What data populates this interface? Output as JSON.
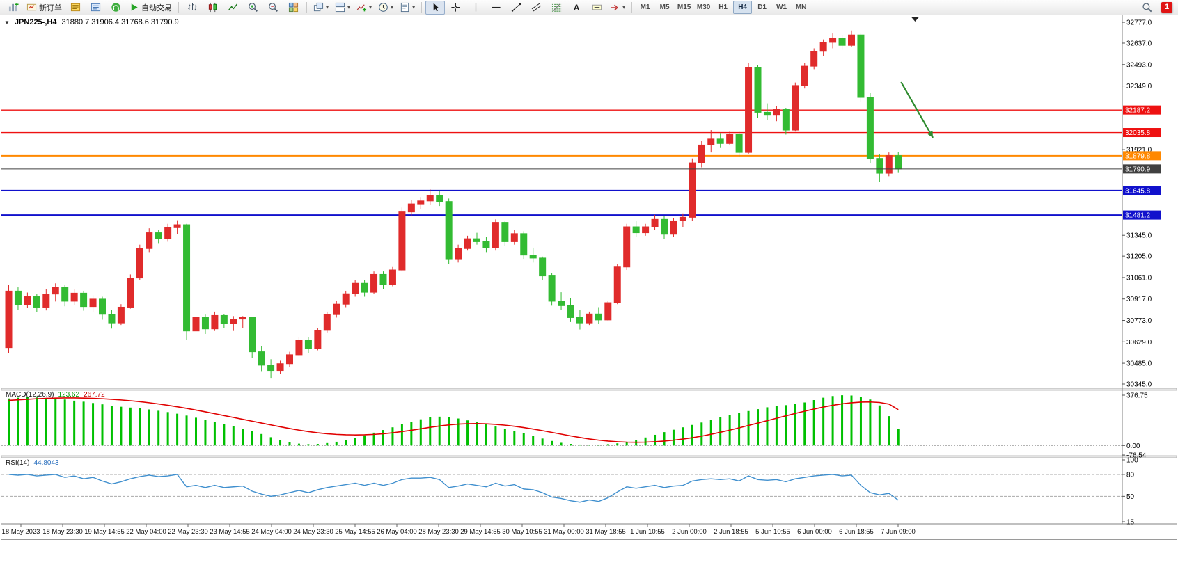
{
  "toolbar": {
    "active_timeframe": "H4",
    "items": [
      {
        "name": "new-chart-icon",
        "icon": "chart-plus"
      },
      {
        "name": "new-order-button",
        "icon": "order-ticket",
        "label": "新订单"
      },
      {
        "name": "market-watch-icon",
        "icon": "market-watch"
      },
      {
        "name": "data-window-icon",
        "icon": "data-window"
      },
      {
        "name": "toolbox-icon",
        "icon": "headset"
      },
      {
        "name": "autotrading-button",
        "icon": "play",
        "label": "自动交易"
      },
      {
        "sep": true
      },
      {
        "name": "bar-chart-icon",
        "icon": "bars"
      },
      {
        "name": "candlestick-chart-icon",
        "icon": "candles"
      },
      {
        "name": "line-chart-icon",
        "icon": "line-chart"
      },
      {
        "name": "zoom-in-icon",
        "icon": "zoom-in"
      },
      {
        "name": "zoom-out-icon",
        "icon": "zoom-out"
      },
      {
        "name": "tile-windows-icon",
        "icon": "tiles"
      },
      {
        "sep": true
      },
      {
        "name": "cascade-windows-icon",
        "icon": "cascade",
        "dropdown": true
      },
      {
        "name": "arrange-windows-icon",
        "icon": "arrange",
        "dropdown": true
      },
      {
        "name": "indicators-icon",
        "icon": "indicator-plus",
        "dropdown": true
      },
      {
        "name": "periods-icon",
        "icon": "clock",
        "dropdown": true
      },
      {
        "name": "templates-icon",
        "icon": "template",
        "dropdown": true
      },
      {
        "sep": true
      },
      {
        "name": "cursor-tool-button",
        "icon": "cursor",
        "active": true
      },
      {
        "name": "crosshair-tool-button",
        "icon": "crosshair"
      },
      {
        "name": "vertical-line-tool-button",
        "icon": "vline"
      },
      {
        "name": "horizontal-line-tool-button",
        "icon": "hline"
      },
      {
        "name": "trendline-tool-button",
        "icon": "trendline"
      },
      {
        "name": "channel-tool-button",
        "icon": "channel"
      },
      {
        "name": "fibonacci-tool-button",
        "icon": "fibonacci"
      },
      {
        "name": "text-tool-button",
        "label": "A"
      },
      {
        "name": "text-label-tool-button",
        "icon": "text-label"
      },
      {
        "name": "arrows-tool-button",
        "icon": "arrow-shape",
        "dropdown": true
      },
      {
        "sep": true
      },
      {
        "tf": "M1"
      },
      {
        "tf": "M5"
      },
      {
        "tf": "M15"
      },
      {
        "tf": "M30"
      },
      {
        "tf": "H1"
      },
      {
        "tf": "H4"
      },
      {
        "tf": "D1"
      },
      {
        "tf": "W1"
      },
      {
        "tf": "MN"
      }
    ],
    "right_items": [
      {
        "name": "search-icon",
        "icon": "search"
      },
      {
        "name": "notification-badge",
        "label": "1",
        "badge": true
      }
    ]
  },
  "chart": {
    "symbol_period": "JPN225-,H4",
    "ohlc_text": "31880.7 31906.4 31768.6 31790.9"
  },
  "chart_data": {
    "type": "candlestick",
    "symbol": "JPN225-",
    "timeframe": "H4",
    "current_bar": {
      "open": 31880.7,
      "high": 31906.4,
      "low": 31768.6,
      "close": 31790.9
    },
    "colors": {
      "up": "#e02b2b",
      "down": "#33bb33",
      "macd_hist": "#00c000",
      "macd_signal": "#e00000",
      "rsi": "#3f8fce"
    },
    "y_range": [
      30317,
      32824
    ],
    "y_ticks": [
      32777.0,
      32637.0,
      32493.0,
      32349.0,
      31921.0,
      31345.0,
      31205.0,
      31061.0,
      30917.0,
      30773.0,
      30629.0,
      30485.0,
      30345.0
    ],
    "hlines": [
      {
        "price": 32187.2,
        "label": "32187.2",
        "color": "#ee1111",
        "width": 1.4
      },
      {
        "price": 32035.8,
        "label": "32035.8",
        "color": "#ee1111",
        "width": 1.4
      },
      {
        "price": 31879.8,
        "label": "31879.8",
        "color": "#ff8800",
        "width": 2
      },
      {
        "price": 31790.9,
        "label": "31790.9",
        "color": "#404040",
        "width": 1,
        "role": "current-price"
      },
      {
        "price": 31645.8,
        "label": "31645.8",
        "color": "#1111cc",
        "width": 2
      },
      {
        "price": 31481.2,
        "label": "31481.2",
        "color": "#1111cc",
        "width": 2
      }
    ],
    "candles": [
      [
        30590,
        31010,
        30555,
        30970
      ],
      [
        30970,
        30995,
        30845,
        30880
      ],
      [
        30880,
        30960,
        30858,
        30932
      ],
      [
        30932,
        30952,
        30828,
        30862
      ],
      [
        30862,
        30982,
        30840,
        30950
      ],
      [
        30950,
        31022,
        30900,
        30996
      ],
      [
        30996,
        31012,
        30868,
        30902
      ],
      [
        30902,
        30982,
        30878,
        30956
      ],
      [
        30956,
        30972,
        30838,
        30866
      ],
      [
        30866,
        30942,
        30830,
        30916
      ],
      [
        30916,
        30932,
        30778,
        30814
      ],
      [
        30814,
        30842,
        30718,
        30756
      ],
      [
        30756,
        30882,
        30742,
        30862
      ],
      [
        30862,
        31082,
        30852,
        31058
      ],
      [
        31058,
        31282,
        31042,
        31256
      ],
      [
        31256,
        31392,
        31232,
        31362
      ],
      [
        31362,
        31382,
        31288,
        31322
      ],
      [
        31322,
        31422,
        31302,
        31396
      ],
      [
        31396,
        31446,
        31352,
        31416
      ],
      [
        31416,
        31422,
        30642,
        30702
      ],
      [
        30702,
        30822,
        30662,
        30796
      ],
      [
        30796,
        30812,
        30682,
        30716
      ],
      [
        30716,
        30832,
        30702,
        30806
      ],
      [
        30806,
        30816,
        30722,
        30752
      ],
      [
        30752,
        30802,
        30702,
        30782
      ],
      [
        30782,
        30802,
        30722,
        30792
      ],
      [
        30792,
        30796,
        30522,
        30562
      ],
      [
        30562,
        30602,
        30432,
        30472
      ],
      [
        30472,
        30512,
        30382,
        30436
      ],
      [
        30436,
        30502,
        30412,
        30482
      ],
      [
        30482,
        30562,
        30462,
        30542
      ],
      [
        30542,
        30662,
        30532,
        30642
      ],
      [
        30642,
        30662,
        30552,
        30582
      ],
      [
        30582,
        30722,
        30572,
        30706
      ],
      [
        30706,
        30832,
        30692,
        30812
      ],
      [
        30812,
        30902,
        30792,
        30882
      ],
      [
        30882,
        30972,
        30862,
        30952
      ],
      [
        30952,
        31042,
        30932,
        31022
      ],
      [
        31022,
        31042,
        30932,
        30962
      ],
      [
        30962,
        31102,
        30952,
        31082
      ],
      [
        31082,
        31102,
        30982,
        31012
      ],
      [
        31012,
        31132,
        31002,
        31112
      ],
      [
        31112,
        31532,
        31102,
        31502
      ],
      [
        31502,
        31582,
        31472,
        31556
      ],
      [
        31556,
        31602,
        31522,
        31576
      ],
      [
        31576,
        31656,
        31552,
        31612
      ],
      [
        31612,
        31646,
        31542,
        31572
      ],
      [
        31572,
        31592,
        31152,
        31182
      ],
      [
        31182,
        31282,
        31162,
        31256
      ],
      [
        31256,
        31342,
        31242,
        31322
      ],
      [
        31322,
        31362,
        31282,
        31302
      ],
      [
        31302,
        31332,
        31232,
        31262
      ],
      [
        31262,
        31452,
        31242,
        31432
      ],
      [
        31432,
        31442,
        31272,
        31302
      ],
      [
        31302,
        31382,
        31282,
        31356
      ],
      [
        31356,
        31372,
        31182,
        31212
      ],
      [
        31212,
        31262,
        31162,
        31192
      ],
      [
        31192,
        31202,
        31042,
        31072
      ],
      [
        31072,
        31092,
        30872,
        30902
      ],
      [
        30902,
        30962,
        30842,
        30872
      ],
      [
        30872,
        30922,
        30762,
        30792
      ],
      [
        30792,
        30842,
        30712,
        30756
      ],
      [
        30756,
        30832,
        30742,
        30816
      ],
      [
        30816,
        30862,
        30752,
        30776
      ],
      [
        30776,
        30902,
        30772,
        30892
      ],
      [
        30892,
        31152,
        30882,
        31132
      ],
      [
        31132,
        31422,
        31112,
        31402
      ],
      [
        31402,
        31442,
        31332,
        31362
      ],
      [
        31362,
        31422,
        31342,
        31402
      ],
      [
        31402,
        31482,
        31382,
        31452
      ],
      [
        31452,
        31472,
        31322,
        31352
      ],
      [
        31352,
        31462,
        31332,
        31442
      ],
      [
        31442,
        31492,
        31402,
        31466
      ],
      [
        31466,
        31862,
        31442,
        31832
      ],
      [
        31832,
        31982,
        31802,
        31952
      ],
      [
        31952,
        32052,
        31902,
        31992
      ],
      [
        31992,
        32032,
        31932,
        31962
      ],
      [
        31962,
        32042,
        31952,
        32022
      ],
      [
        32022,
        32042,
        31872,
        31902
      ],
      [
        31902,
        32502,
        31892,
        32472
      ],
      [
        32472,
        32492,
        32132,
        32172
      ],
      [
        32172,
        32232,
        32122,
        32152
      ],
      [
        32152,
        32212,
        32112,
        32192
      ],
      [
        32192,
        32202,
        32022,
        32052
      ],
      [
        32052,
        32372,
        32042,
        32352
      ],
      [
        32352,
        32502,
        32332,
        32482
      ],
      [
        32482,
        32602,
        32462,
        32582
      ],
      [
        32582,
        32662,
        32552,
        32642
      ],
      [
        32642,
        32702,
        32602,
        32672
      ],
      [
        32672,
        32692,
        32592,
        32622
      ],
      [
        32622,
        32722,
        32612,
        32692
      ],
      [
        32692,
        32702,
        32242,
        32272
      ],
      [
        32272,
        32302,
        31832,
        31862
      ],
      [
        31862,
        31892,
        31702,
        31762
      ],
      [
        31762,
        31902,
        31742,
        31881
      ],
      [
        31880.7,
        31906.4,
        31768.6,
        31790.9
      ]
    ],
    "x_labels": [
      "18 May 2023",
      "18 May 23:30",
      "19 May 14:55",
      "22 May 04:00",
      "22 May 23:30",
      "23 May 14:55",
      "24 May 04:00",
      "24 May 23:30",
      "25 May 14:55",
      "26 May 04:00",
      "28 May 23:30",
      "29 May 14:55",
      "30 May 10:55",
      "31 May 00:00",
      "31 May 18:55",
      "1 Jun 10:55",
      "2 Jun 00:00",
      "2 Jun 18:55",
      "5 Jun 10:55",
      "6 Jun 00:00",
      "6 Jun 18:55",
      "7 Jun 09:00"
    ],
    "macd": {
      "label": "MACD(12,26,9)",
      "value_main": "123.62",
      "value_signal": "267.72",
      "range": [
        -76.54,
        376.75
      ],
      "ticks": [
        {
          "value": 376.75,
          "label": "376.75"
        },
        {
          "value": 0,
          "label": "0.00"
        },
        {
          "value": -76.54,
          "label": "-76.54"
        }
      ],
      "histogram": [
        352,
        358,
        362,
        360,
        355,
        350,
        344,
        336,
        328,
        318,
        308,
        298,
        290,
        284,
        278,
        270,
        260,
        250,
        238,
        224,
        208,
        192,
        176,
        160,
        144,
        126,
        106,
        86,
        62,
        40,
        24,
        14,
        10,
        12,
        18,
        28,
        42,
        58,
        76,
        96,
        116,
        136,
        158,
        178,
        196,
        210,
        216,
        212,
        202,
        188,
        174,
        158,
        142,
        126,
        110,
        92,
        72,
        52,
        34,
        20,
        12,
        7,
        5,
        6,
        10,
        16,
        26,
        42,
        60,
        80,
        100,
        118,
        136,
        154,
        172,
        192,
        210,
        226,
        242,
        258,
        272,
        286,
        296,
        302,
        310,
        322,
        340,
        358,
        370,
        376,
        374,
        364,
        344,
        300,
        220,
        124
      ],
      "signal": [
        338,
        342,
        346,
        350,
        353,
        355,
        356,
        356,
        355,
        353,
        350,
        346,
        341,
        335,
        328,
        320,
        311,
        301,
        290,
        278,
        265,
        252,
        238,
        224,
        210,
        196,
        182,
        168,
        154,
        140,
        127,
        115,
        104,
        95,
        88,
        83,
        80,
        79,
        80,
        83,
        88,
        95,
        104,
        114,
        125,
        136,
        146,
        154,
        160,
        163,
        164,
        162,
        158,
        152,
        144,
        134,
        123,
        111,
        98,
        85,
        72,
        60,
        49,
        40,
        33,
        28,
        25,
        24,
        25,
        28,
        33,
        40,
        48,
        58,
        70,
        84,
        99,
        115,
        132,
        150,
        168,
        186,
        204,
        222,
        240,
        257,
        273,
        288,
        301,
        312,
        320,
        325,
        326,
        322,
        310,
        268
      ]
    },
    "rsi": {
      "label": "RSI(14)",
      "value": "44.8043",
      "scale": [
        15,
        100
      ],
      "ticks": [
        {
          "value": 100,
          "label": "100"
        },
        {
          "value": 80,
          "label": "80"
        },
        {
          "value": 50,
          "label": "50"
        },
        {
          "value": 15,
          "label": "15"
        }
      ],
      "levels": [
        80,
        50
      ],
      "values": [
        80,
        79,
        80,
        78,
        79,
        80,
        76,
        78,
        74,
        76,
        71,
        67,
        70,
        74,
        77,
        79,
        77,
        78,
        80,
        63,
        65,
        62,
        65,
        62,
        63,
        64,
        57,
        53,
        50,
        52,
        55,
        58,
        55,
        59,
        62,
        64,
        66,
        68,
        65,
        68,
        65,
        68,
        73,
        75,
        75,
        76,
        73,
        62,
        64,
        67,
        65,
        63,
        68,
        64,
        66,
        60,
        59,
        55,
        49,
        47,
        44,
        42,
        45,
        43,
        48,
        56,
        63,
        61,
        63,
        65,
        62,
        64,
        65,
        71,
        73,
        74,
        73,
        74,
        71,
        78,
        73,
        72,
        73,
        70,
        74,
        76,
        78,
        79,
        80,
        78,
        79,
        65,
        55,
        52,
        54,
        44.8
      ]
    },
    "annotations": {
      "trend_arrow": {
        "from_bar": 95.3,
        "from_price": 32375,
        "to_bar": 98.7,
        "to_price": 32001,
        "color": "#2e8b2e"
      },
      "shift_marker_bar": 96.8
    }
  }
}
